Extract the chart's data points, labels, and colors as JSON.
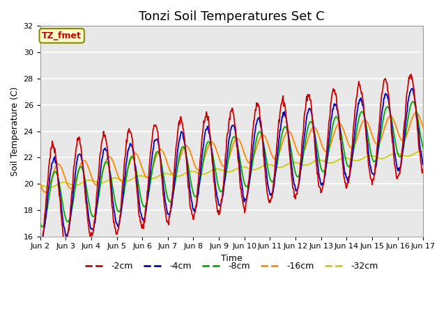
{
  "title": "Tonzi Soil Temperatures Set C",
  "xlabel": "Time",
  "ylabel": "Soil Temperature (C)",
  "ylim": [
    16,
    32
  ],
  "xlim": [
    0,
    15
  ],
  "xtick_labels": [
    "Jun 2",
    "Jun 3",
    "Jun 4",
    "Jun 5",
    "Jun 6",
    "Jun 7",
    "Jun 8",
    "Jun 9",
    "Jun 10",
    "Jun 11",
    "Jun 12",
    "Jun 13",
    "Jun 14",
    "Jun 15",
    "Jun 16",
    "Jun 17"
  ],
  "colors": {
    "-2cm": "#cc0000",
    "-4cm": "#0000cc",
    "-8cm": "#00aa00",
    "-16cm": "#ff8800",
    "-32cm": "#cccc00"
  },
  "annotation_text": "TZ_fmet",
  "annotation_color": "#cc0000",
  "annotation_bg": "#ffffcc",
  "annotation_border": "#888800",
  "background_color": "#e8e8e8",
  "grid_color": "#ffffff",
  "title_fontsize": 13,
  "axis_fontsize": 9,
  "tick_fontsize": 8
}
